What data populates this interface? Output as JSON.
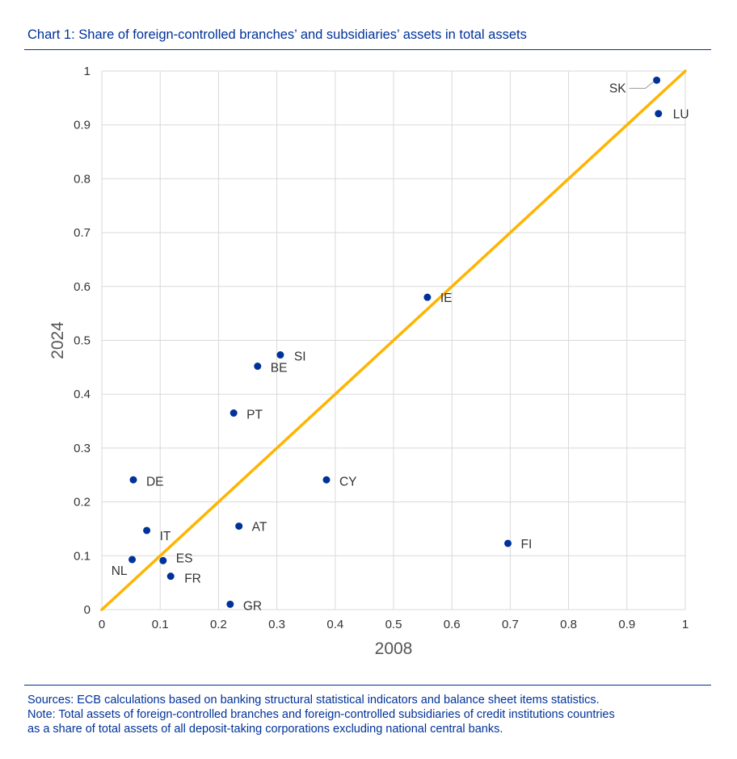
{
  "title": "Chart 1: Share of foreign-controlled branches’ and subsidiaries’ assets in total assets",
  "sources": "Sources: ECB calculations based on banking structural statistical indicators and balance sheet items statistics.",
  "note_line1": "Note: Total assets of foreign-controlled branches and foreign-controlled subsidiaries of credit institutions countries",
  "note_line2": "as a share of total assets of all deposit-taking corporations excluding national central banks.",
  "chart_data": {
    "type": "scatter",
    "xlabel": "2008",
    "ylabel": "2024",
    "xlim": [
      0,
      1
    ],
    "ylim": [
      0,
      1
    ],
    "xticks": [
      "0",
      "0.1",
      "0.2",
      "0.3",
      "0.4",
      "0.5",
      "0.6",
      "0.7",
      "0.8",
      "0.9",
      "1"
    ],
    "yticks": [
      "0",
      "0.1",
      "0.2",
      "0.3",
      "0.4",
      "0.5",
      "0.6",
      "0.7",
      "0.8",
      "0.9",
      "1"
    ],
    "grid": true,
    "reference_line": {
      "from": [
        0,
        0
      ],
      "to": [
        1,
        1
      ]
    },
    "colors": {
      "points": "#003299",
      "line": "#FFB400",
      "grid": "#d9d9d9",
      "text": "#333333"
    },
    "points": [
      {
        "label": "SK",
        "x": 0.951,
        "y": 0.983
      },
      {
        "label": "LU",
        "x": 0.954,
        "y": 0.921
      },
      {
        "label": "IE",
        "x": 0.558,
        "y": 0.58
      },
      {
        "label": "SI",
        "x": 0.306,
        "y": 0.473
      },
      {
        "label": "BE",
        "x": 0.267,
        "y": 0.452
      },
      {
        "label": "PT",
        "x": 0.226,
        "y": 0.365
      },
      {
        "label": "DE",
        "x": 0.054,
        "y": 0.241
      },
      {
        "label": "CY",
        "x": 0.385,
        "y": 0.241
      },
      {
        "label": "AT",
        "x": 0.235,
        "y": 0.155
      },
      {
        "label": "IT",
        "x": 0.077,
        "y": 0.147
      },
      {
        "label": "FI",
        "x": 0.696,
        "y": 0.123
      },
      {
        "label": "ES",
        "x": 0.105,
        "y": 0.091
      },
      {
        "label": "NL",
        "x": 0.052,
        "y": 0.093
      },
      {
        "label": "FR",
        "x": 0.118,
        "y": 0.062
      },
      {
        "label": "GR",
        "x": 0.22,
        "y": 0.01
      }
    ]
  }
}
